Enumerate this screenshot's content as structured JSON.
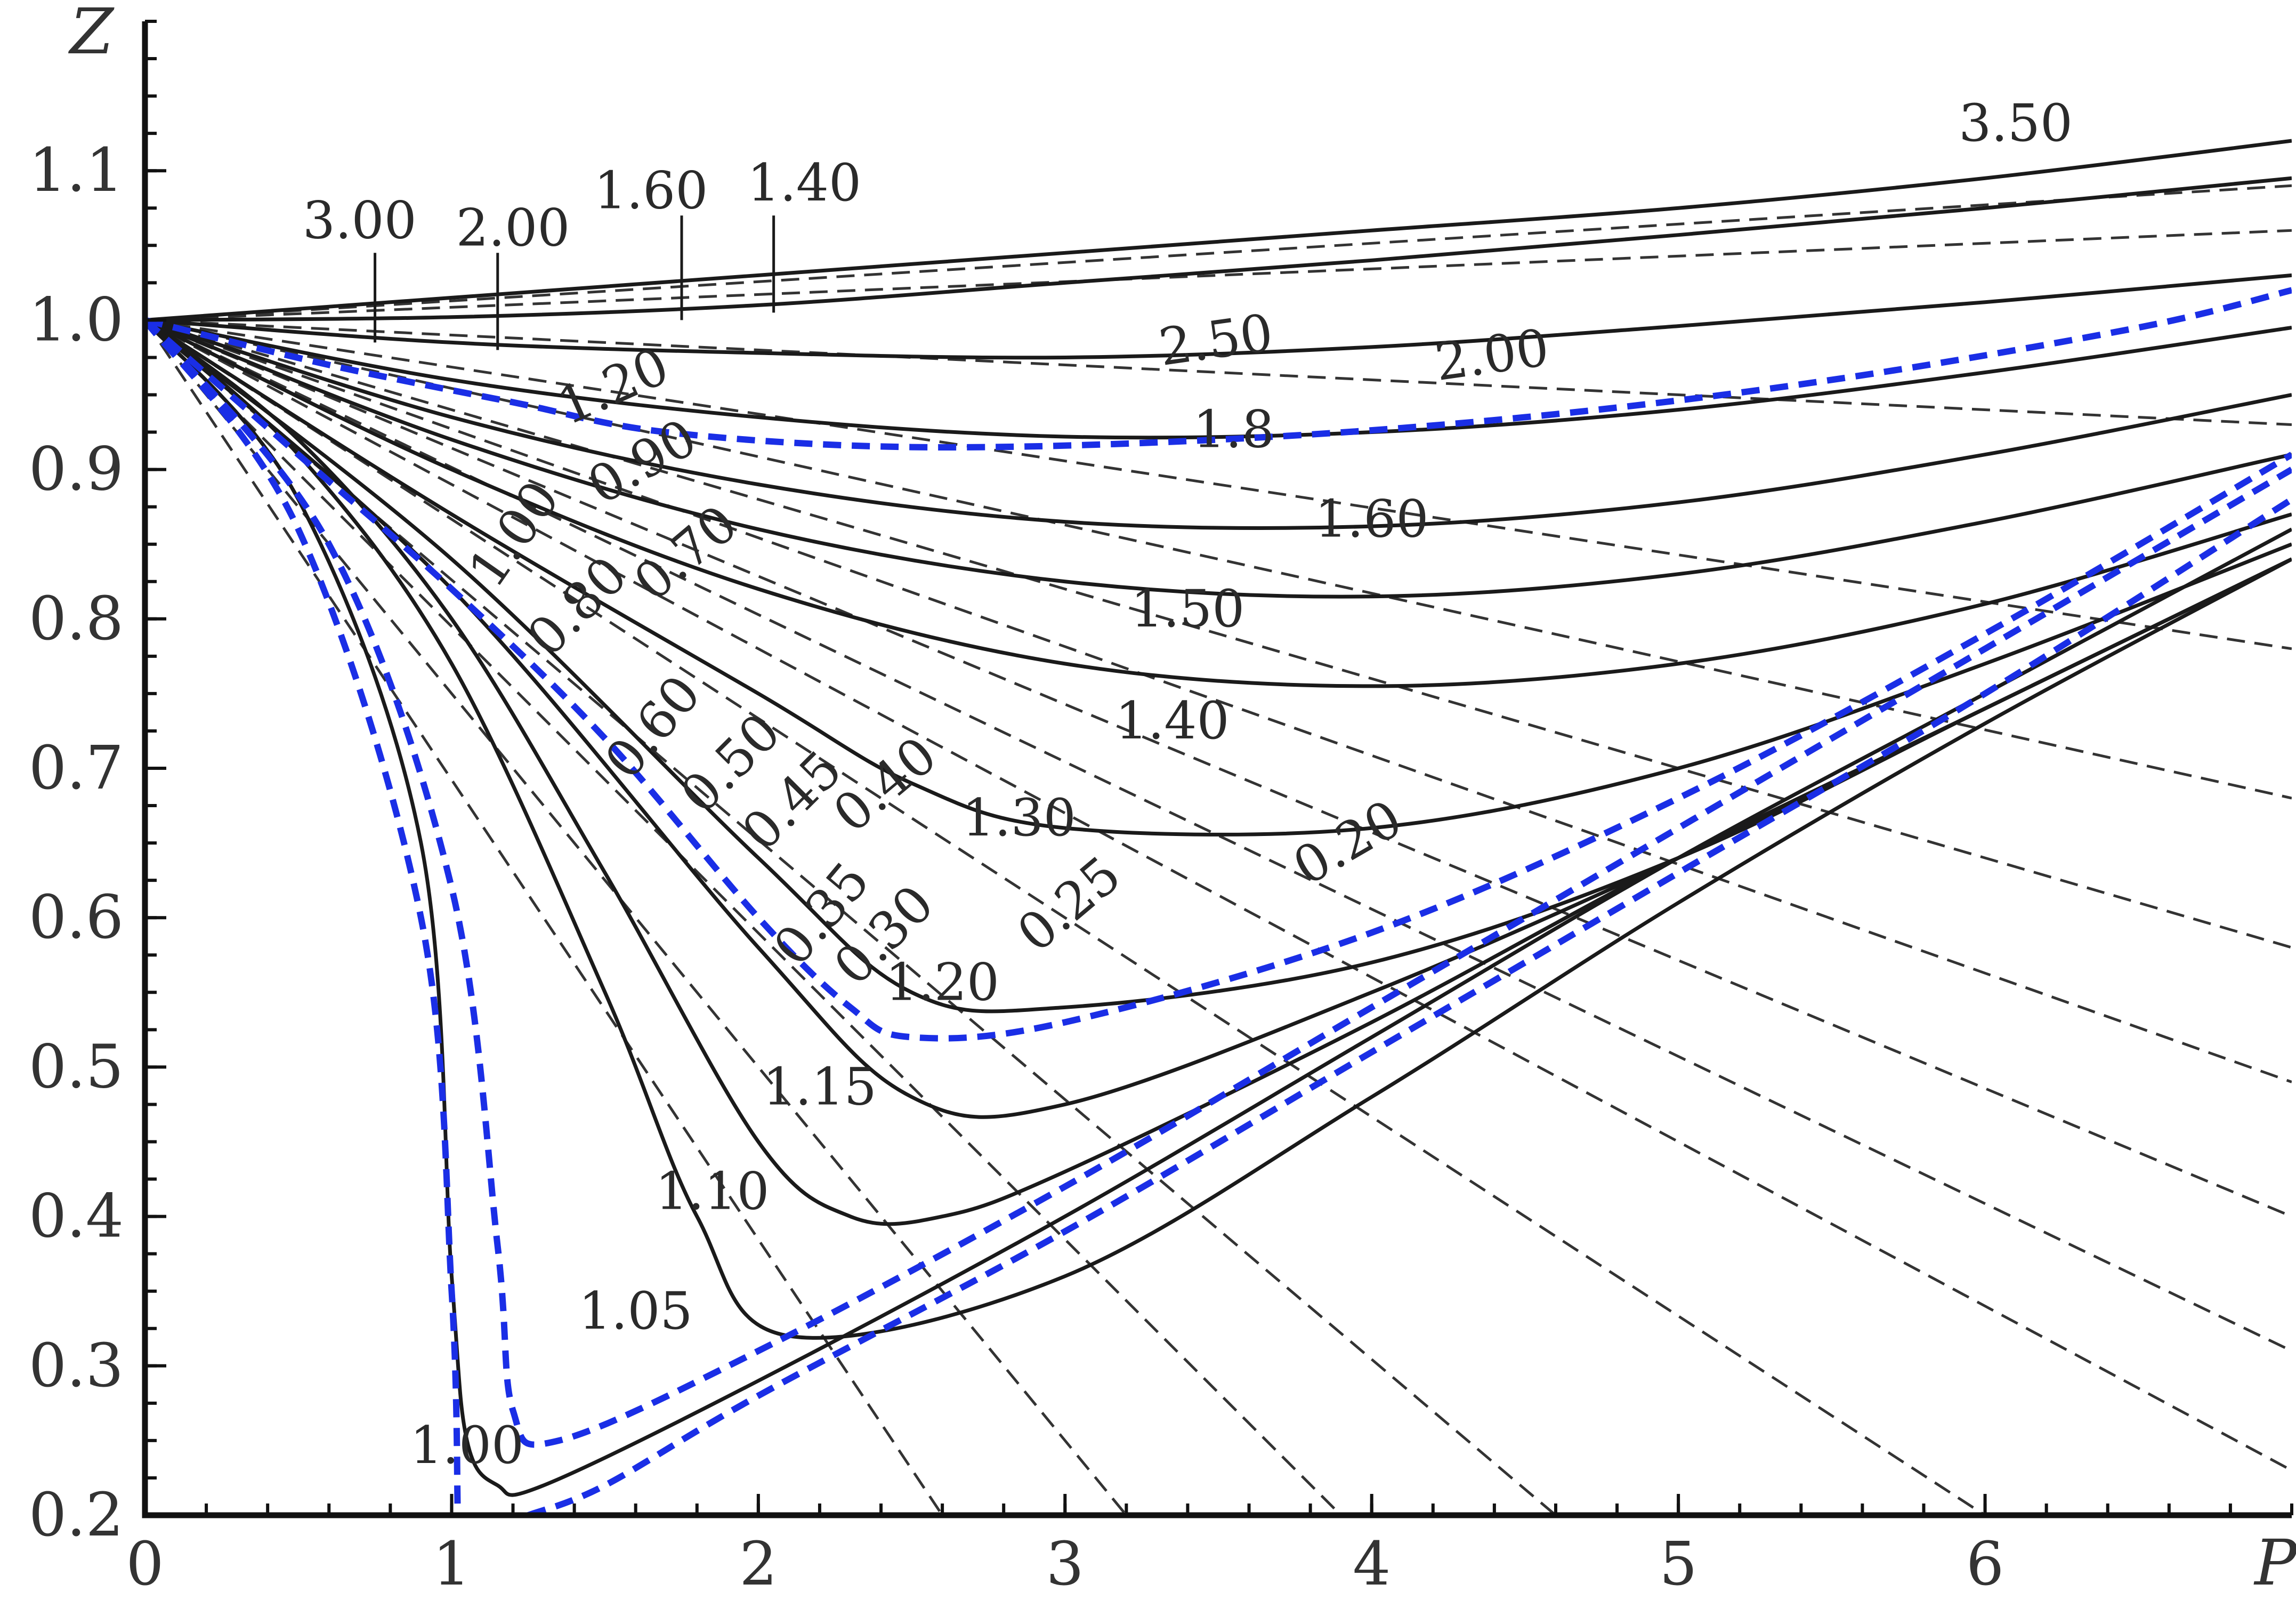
{
  "chart_data": {
    "type": "line",
    "xlabel": "P",
    "ylabel": "Z",
    "xlim": [
      0,
      7
    ],
    "ylim": [
      0.2,
      1.2
    ],
    "xticks": [
      "0",
      "1",
      "2",
      "3",
      "4",
      "5",
      "6"
    ],
    "yticks": [
      "0.2",
      "0.3",
      "0.4",
      "0.5",
      "0.6",
      "0.7",
      "0.8",
      "0.9",
      "1.0",
      "1.1"
    ],
    "grid": false,
    "legend": "none",
    "colors": {
      "solid": "#1a1a1a",
      "dashed": "#333333",
      "blue": "#1a2ee6"
    },
    "series": [
      {
        "style": "solid",
        "label": "3.50",
        "x": [
          0,
          1,
          2,
          3,
          4,
          5,
          6,
          7
        ],
        "y": [
          1.0,
          1.015,
          1.03,
          1.045,
          1.06,
          1.075,
          1.095,
          1.12
        ]
      },
      {
        "style": "solid",
        "label": "3.00",
        "x": [
          0,
          1,
          2,
          3,
          4,
          5,
          6,
          7
        ],
        "y": [
          1.0,
          1.002,
          1.01,
          1.025,
          1.04,
          1.057,
          1.075,
          1.095
        ]
      },
      {
        "style": "solid",
        "label": "2.00",
        "x": [
          0,
          1,
          2,
          3,
          4,
          5,
          6,
          7
        ],
        "y": [
          1.0,
          0.985,
          0.978,
          0.975,
          0.982,
          0.996,
          1.012,
          1.03
        ]
      },
      {
        "style": "solid",
        "label": "1.8",
        "x": [
          0,
          1,
          2,
          3,
          4,
          5,
          6,
          7
        ],
        "y": [
          1.0,
          0.96,
          0.935,
          0.922,
          0.925,
          0.94,
          0.965,
          0.995
        ]
      },
      {
        "style": "solid",
        "label": "1.60",
        "x": [
          0,
          1,
          2,
          3,
          4,
          5,
          6,
          7
        ],
        "y": [
          1.0,
          0.935,
          0.89,
          0.865,
          0.862,
          0.878,
          0.91,
          0.95
        ]
      },
      {
        "style": "solid",
        "label": "1.50",
        "x": [
          0,
          1,
          2,
          3,
          4,
          5,
          6,
          7
        ],
        "y": [
          1.0,
          0.92,
          0.86,
          0.825,
          0.815,
          0.83,
          0.865,
          0.91
        ]
      },
      {
        "style": "solid",
        "label": "1.40",
        "x": [
          0,
          1,
          2,
          3,
          4,
          5,
          6,
          7
        ],
        "y": [
          1.0,
          0.9,
          0.82,
          0.77,
          0.755,
          0.77,
          0.81,
          0.87
        ]
      },
      {
        "style": "solid",
        "label": "1.30",
        "x": [
          0,
          1,
          2,
          2.5,
          3,
          4,
          5,
          6,
          7
        ],
        "y": [
          1.0,
          0.87,
          0.75,
          0.69,
          0.66,
          0.66,
          0.7,
          0.77,
          0.85
        ]
      },
      {
        "style": "solid",
        "label": "1.20",
        "x": [
          0,
          1,
          2,
          2.5,
          3,
          4,
          5,
          6,
          7
        ],
        "y": [
          1.0,
          0.84,
          0.64,
          0.55,
          0.54,
          0.57,
          0.64,
          0.74,
          0.84
        ]
      },
      {
        "style": "solid",
        "label": "1.15",
        "x": [
          0,
          1,
          2,
          2.5,
          3,
          4,
          5,
          6,
          7
        ],
        "y": [
          1.0,
          0.82,
          0.58,
          0.48,
          0.475,
          0.55,
          0.64,
          0.74,
          0.84
        ]
      },
      {
        "style": "solid",
        "label": "1.10",
        "x": [
          0,
          0.5,
          1,
          1.5,
          2,
          2.3,
          2.6,
          3,
          4,
          5,
          6,
          7
        ],
        "y": [
          1.0,
          0.92,
          0.8,
          0.63,
          0.45,
          0.4,
          0.4,
          0.43,
          0.53,
          0.64,
          0.74,
          0.84
        ]
      },
      {
        "style": "solid",
        "label": "1.05",
        "x": [
          0,
          0.5,
          1,
          1.5,
          1.8,
          2.1,
          3,
          4,
          5,
          6,
          7
        ],
        "y": [
          1.0,
          0.91,
          0.77,
          0.55,
          0.4,
          0.32,
          0.36,
          0.48,
          0.61,
          0.73,
          0.84
        ]
      },
      {
        "style": "solid",
        "label": "1.00",
        "x": [
          0,
          0.5,
          0.9,
          1.0,
          1.05,
          1.15,
          1.3,
          2,
          3,
          4,
          5,
          6,
          7
        ],
        "y": [
          1.0,
          0.88,
          0.65,
          0.36,
          0.25,
          0.22,
          0.22,
          0.29,
          0.4,
          0.52,
          0.64,
          0.75,
          0.86
        ]
      },
      {
        "style": "dashed",
        "label": "2.50",
        "x": [
          0,
          7
        ],
        "y": [
          1.0,
          1.09
        ]
      },
      {
        "style": "dashed",
        "label": "2.00",
        "x": [
          0,
          7
        ],
        "y": [
          1.0,
          1.06
        ]
      },
      {
        "style": "dashed",
        "label": "1.20",
        "x": [
          0,
          7
        ],
        "y": [
          1.0,
          0.93
        ]
      },
      {
        "style": "dashed",
        "label": "0.90",
        "x": [
          0,
          7
        ],
        "y": [
          1.0,
          0.78
        ]
      },
      {
        "style": "dashed",
        "label": "1.00",
        "x": [
          0,
          7
        ],
        "y": [
          1.0,
          0.68
        ]
      },
      {
        "style": "dashed",
        "label": "0.80",
        "x": [
          0,
          7
        ],
        "y": [
          1.0,
          0.58
        ]
      },
      {
        "style": "dashed",
        "label": "0.70",
        "x": [
          0,
          7
        ],
        "y": [
          1.0,
          0.49
        ]
      },
      {
        "style": "dashed",
        "label": "0.60",
        "x": [
          0,
          7
        ],
        "y": [
          1.0,
          0.4
        ]
      },
      {
        "style": "dashed",
        "label": "0.50",
        "x": [
          0,
          7
        ],
        "y": [
          1.0,
          0.31
        ]
      },
      {
        "style": "dashed",
        "label": "0.45",
        "x": [
          0,
          7
        ],
        "y": [
          1.0,
          0.23
        ]
      },
      {
        "style": "dashed",
        "label": "0.40",
        "x": [
          0,
          6
        ],
        "y": [
          1.0,
          0.2
        ]
      },
      {
        "style": "dashed",
        "label": "0.35",
        "x": [
          0,
          4.6
        ],
        "y": [
          1.0,
          0.2
        ]
      },
      {
        "style": "dashed",
        "label": "0.30",
        "x": [
          0,
          3.9
        ],
        "y": [
          1.0,
          0.2
        ]
      },
      {
        "style": "dashed",
        "label": "0.25",
        "x": [
          0,
          3.2
        ],
        "y": [
          1.0,
          0.2
        ]
      },
      {
        "style": "dashed",
        "label": "0.20",
        "x": [
          0,
          2.6
        ],
        "y": [
          1.0,
          0.2
        ]
      },
      {
        "style": "blue",
        "x": [
          0,
          0.6,
          1.2,
          1.7,
          2.5,
          3.5,
          4.5,
          5.5,
          6.5,
          7
        ],
        "y": [
          1.0,
          0.97,
          0.945,
          0.925,
          0.915,
          0.92,
          0.935,
          0.96,
          0.995,
          1.02
        ]
      },
      {
        "style": "blue",
        "x": [
          0,
          0.5,
          1,
          1.5,
          2,
          2.3,
          2.5,
          3,
          4,
          5,
          6,
          7
        ],
        "y": [
          1.0,
          0.91,
          0.82,
          0.72,
          0.6,
          0.54,
          0.52,
          0.53,
          0.59,
          0.68,
          0.79,
          0.91
        ]
      },
      {
        "style": "blue",
        "x": [
          0,
          0.5,
          0.9,
          1.0,
          1.02
        ],
        "y": [
          1.0,
          0.86,
          0.6,
          0.35,
          0.2
        ]
      },
      {
        "style": "blue",
        "x": [
          0,
          0.6,
          1.0,
          1.15,
          1.2,
          1.35,
          2,
          3,
          4,
          5,
          6,
          7
        ],
        "y": [
          1.0,
          0.85,
          0.62,
          0.38,
          0.27,
          0.25,
          0.31,
          0.42,
          0.54,
          0.66,
          0.78,
          0.9
        ]
      },
      {
        "style": "blue",
        "x": [
          1.25,
          1.5,
          2,
          3,
          4,
          5,
          6,
          7
        ],
        "y": [
          0.2,
          0.22,
          0.28,
          0.39,
          0.51,
          0.63,
          0.75,
          0.88
        ]
      }
    ],
    "annotations": [
      {
        "text": "3.50",
        "x": 6.1,
        "y": 1.12,
        "rot": 0
      },
      {
        "text": "3.00",
        "x": 0.7,
        "y": 1.055,
        "rot": 0
      },
      {
        "text": "2.00",
        "x": 1.2,
        "y": 1.05,
        "rot": 0
      },
      {
        "text": "1.60",
        "x": 1.65,
        "y": 1.075,
        "rot": 0
      },
      {
        "text": "1.40",
        "x": 2.15,
        "y": 1.08,
        "rot": 0
      },
      {
        "text": "2.50",
        "x": 3.5,
        "y": 0.975,
        "rot": -8
      },
      {
        "text": "2.00",
        "x": 4.4,
        "y": 0.965,
        "rot": -8
      },
      {
        "text": "1.20",
        "x": 1.55,
        "y": 0.945,
        "rot": -24
      },
      {
        "text": "0.90",
        "x": 1.65,
        "y": 0.895,
        "rot": -30
      },
      {
        "text": "1.8",
        "x": 3.55,
        "y": 0.915,
        "rot": 0
      },
      {
        "text": "1.00",
        "x": 1.25,
        "y": 0.85,
        "rot": -55
      },
      {
        "text": "0.80",
        "x": 1.45,
        "y": 0.8,
        "rot": -45
      },
      {
        "text": "0.70",
        "x": 1.8,
        "y": 0.835,
        "rot": -40
      },
      {
        "text": "1.60",
        "x": 4.0,
        "y": 0.855,
        "rot": 0
      },
      {
        "text": "1.50",
        "x": 3.4,
        "y": 0.795,
        "rot": 0
      },
      {
        "text": "0.60",
        "x": 1.7,
        "y": 0.72,
        "rot": -50
      },
      {
        "text": "0.50",
        "x": 1.95,
        "y": 0.695,
        "rot": -45
      },
      {
        "text": "1.40",
        "x": 3.35,
        "y": 0.72,
        "rot": 0
      },
      {
        "text": "0.45",
        "x": 2.15,
        "y": 0.67,
        "rot": -45
      },
      {
        "text": "0.40",
        "x": 2.45,
        "y": 0.68,
        "rot": -40
      },
      {
        "text": "1.30",
        "x": 2.85,
        "y": 0.655,
        "rot": 0
      },
      {
        "text": "0.35",
        "x": 2.25,
        "y": 0.595,
        "rot": -50
      },
      {
        "text": "0.30",
        "x": 2.45,
        "y": 0.58,
        "rot": -45
      },
      {
        "text": "0.25",
        "x": 3.05,
        "y": 0.6,
        "rot": -40
      },
      {
        "text": "0.20",
        "x": 3.95,
        "y": 0.64,
        "rot": -30
      },
      {
        "text": "1.20",
        "x": 2.6,
        "y": 0.545,
        "rot": 0
      },
      {
        "text": "1.15",
        "x": 2.2,
        "y": 0.475,
        "rot": 0
      },
      {
        "text": "1.10",
        "x": 1.85,
        "y": 0.405,
        "rot": 0
      },
      {
        "text": "1.05",
        "x": 1.6,
        "y": 0.325,
        "rot": 0
      },
      {
        "text": "1.00",
        "x": 1.05,
        "y": 0.235,
        "rot": 0
      }
    ]
  }
}
